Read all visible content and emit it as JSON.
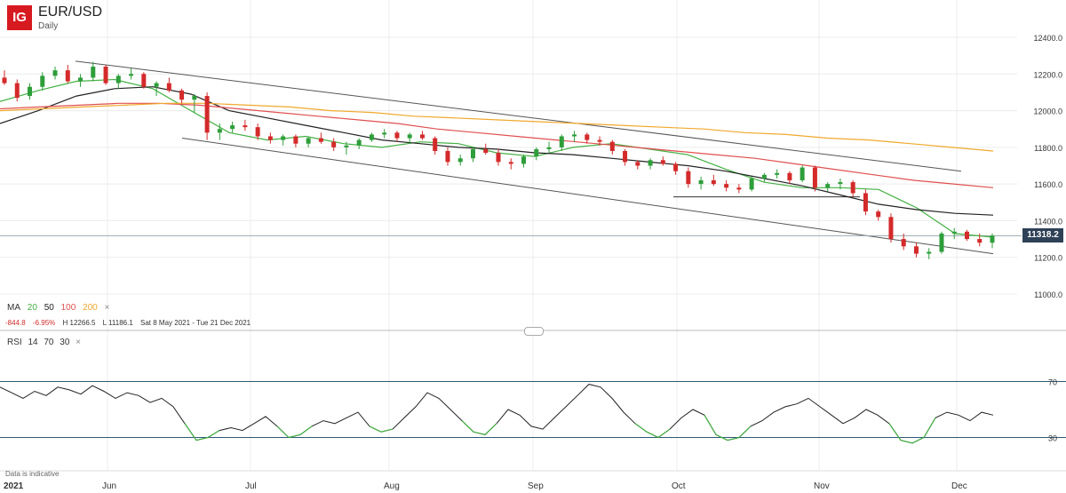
{
  "header": {
    "logo": "IG",
    "title": "EUR/USD",
    "subtitle": "Daily"
  },
  "ma_legend": {
    "label": "MA",
    "p20": "20",
    "p50": "50",
    "p100": "100",
    "p200": "200",
    "close": "×"
  },
  "stats": {
    "change": "-844.8",
    "change_pct": "-6.95%",
    "high": "H 12266.5",
    "low": "L 11186.1",
    "range": "Sat 8 May 2021 - Tue 21 Dec 2021"
  },
  "rsi_legend": {
    "label": "RSI",
    "p1": "14",
    "p2": "70",
    "p3": "30",
    "close": "×"
  },
  "footnote": "Data is indicative",
  "colors": {
    "up": "#2e9e3a",
    "down": "#d42a2a",
    "ma20": "#43b143",
    "ma50": "#222222",
    "ma100": "#e05050",
    "ma200": "#f0a82c",
    "rsi": "#222222",
    "rsi_low": "#43b143",
    "rsi_level": "#2f5878",
    "price_tag": "#2f4157"
  },
  "chart_data": [
    {
      "type": "candlestick",
      "title": "EUR/USD",
      "subtitle": "Daily",
      "y_ticks": [
        "12400.0",
        "12200.0",
        "12000.0",
        "11800.0",
        "11600.0",
        "11400.0",
        "11200.0",
        "11000.0"
      ],
      "ylim": [
        11000,
        12400
      ],
      "x_ticks": [
        "2021",
        "Jun",
        "Jul",
        "Aug",
        "Sep",
        "Oct",
        "Nov",
        "Dec"
      ],
      "last_price": "11318.2",
      "high": 12266.5,
      "low": 11186.1,
      "candles": [
        [
          12180,
          12220,
          12140,
          12150
        ],
        [
          12150,
          12170,
          12050,
          12070
        ],
        [
          12080,
          12150,
          12060,
          12130
        ],
        [
          12130,
          12210,
          12110,
          12190
        ],
        [
          12190,
          12240,
          12170,
          12220
        ],
        [
          12220,
          12250,
          12150,
          12160
        ],
        [
          12160,
          12200,
          12130,
          12180
        ],
        [
          12180,
          12266.5,
          12160,
          12240
        ],
        [
          12240,
          12250,
          12140,
          12150
        ],
        [
          12150,
          12200,
          12120,
          12190
        ],
        [
          12190,
          12230,
          12170,
          12200
        ],
        [
          12200,
          12210,
          12120,
          12130
        ],
        [
          12130,
          12160,
          12080,
          12150
        ],
        [
          12150,
          12180,
          12100,
          12110
        ],
        [
          12110,
          12120,
          12040,
          12060
        ],
        [
          12060,
          12090,
          11990,
          12080
        ],
        [
          12080,
          12100,
          11840,
          11880
        ],
        [
          11880,
          11930,
          11840,
          11900
        ],
        [
          11900,
          11940,
          11880,
          11920
        ],
        [
          11920,
          11950,
          11890,
          11910
        ],
        [
          11910,
          11930,
          11840,
          11860
        ],
        [
          11860,
          11880,
          11820,
          11840
        ],
        [
          11840,
          11870,
          11810,
          11860
        ],
        [
          11860,
          11870,
          11800,
          11820
        ],
        [
          11820,
          11860,
          11800,
          11850
        ],
        [
          11850,
          11880,
          11820,
          11830
        ],
        [
          11830,
          11850,
          11780,
          11800
        ],
        [
          11800,
          11830,
          11760,
          11810
        ],
        [
          11810,
          11850,
          11790,
          11840
        ],
        [
          11840,
          11880,
          11830,
          11870
        ],
        [
          11870,
          11900,
          11850,
          11880
        ],
        [
          11880,
          11890,
          11830,
          11850
        ],
        [
          11850,
          11880,
          11820,
          11870
        ],
        [
          11870,
          11890,
          11840,
          11850
        ],
        [
          11850,
          11860,
          11760,
          11780
        ],
        [
          11780,
          11800,
          11700,
          11720
        ],
        [
          11720,
          11760,
          11700,
          11740
        ],
        [
          11740,
          11800,
          11720,
          11790
        ],
        [
          11790,
          11820,
          11760,
          11770
        ],
        [
          11770,
          11790,
          11700,
          11720
        ],
        [
          11720,
          11740,
          11680,
          11710
        ],
        [
          11710,
          11760,
          11690,
          11750
        ],
        [
          11750,
          11800,
          11730,
          11790
        ],
        [
          11790,
          11830,
          11770,
          11800
        ],
        [
          11800,
          11870,
          11780,
          11860
        ],
        [
          11860,
          11890,
          11830,
          11870
        ],
        [
          11870,
          11880,
          11820,
          11840
        ],
        [
          11840,
          11860,
          11810,
          11830
        ],
        [
          11830,
          11840,
          11760,
          11780
        ],
        [
          11780,
          11790,
          11700,
          11720
        ],
        [
          11720,
          11730,
          11680,
          11700
        ],
        [
          11700,
          11740,
          11680,
          11730
        ],
        [
          11730,
          11750,
          11700,
          11710
        ],
        [
          11710,
          11720,
          11650,
          11670
        ],
        [
          11670,
          11690,
          11580,
          11600
        ],
        [
          11600,
          11640,
          11570,
          11620
        ],
        [
          11620,
          11650,
          11590,
          11600
        ],
        [
          11600,
          11620,
          11560,
          11580
        ],
        [
          11580,
          11600,
          11550,
          11570
        ],
        [
          11570,
          11640,
          11560,
          11630
        ],
        [
          11630,
          11660,
          11610,
          11650
        ],
        [
          11650,
          11680,
          11630,
          11660
        ],
        [
          11660,
          11670,
          11600,
          11620
        ],
        [
          11620,
          11700,
          11610,
          11690
        ],
        [
          11690,
          11700,
          11560,
          11580
        ],
        [
          11580,
          11610,
          11560,
          11600
        ],
        [
          11600,
          11630,
          11570,
          11610
        ],
        [
          11610,
          11620,
          11530,
          11550
        ],
        [
          11550,
          11570,
          11430,
          11450
        ],
        [
          11450,
          11460,
          11400,
          11420
        ],
        [
          11420,
          11440,
          11280,
          11300
        ],
        [
          11300,
          11330,
          11240,
          11260
        ],
        [
          11260,
          11280,
          11200,
          11220
        ],
        [
          11220,
          11250,
          11190,
          11230
        ],
        [
          11230,
          11340,
          11220,
          11330
        ],
        [
          11330,
          11360,
          11300,
          11340
        ],
        [
          11340,
          11350,
          11290,
          11300
        ],
        [
          11300,
          11330,
          11260,
          11280
        ],
        [
          11280,
          11330,
          11250,
          11318
        ]
      ],
      "ma_series": [
        {
          "name": "20",
          "values": [
            12050,
            12110,
            12160,
            12170,
            12120,
            12000,
            11880,
            11840,
            11860,
            11820,
            11800,
            11830,
            11820,
            11770,
            11750,
            11800,
            11820,
            11790,
            11760,
            11680,
            11610,
            11580,
            11580,
            11570,
            11470,
            11330,
            11310
          ]
        },
        {
          "name": "50",
          "values": [
            11930,
            12000,
            12080,
            12120,
            12130,
            12090,
            12000,
            11960,
            11920,
            11880,
            11840,
            11820,
            11800,
            11790,
            11770,
            11760,
            11740,
            11720,
            11700,
            11670,
            11630,
            11590,
            11540,
            11490,
            11460,
            11440,
            11430
          ]
        },
        {
          "name": "100",
          "values": [
            12010,
            12020,
            12030,
            12040,
            12040,
            12030,
            12010,
            11990,
            11970,
            11950,
            11930,
            11900,
            11880,
            11860,
            11840,
            11820,
            11800,
            11780,
            11760,
            11740,
            11710,
            11680,
            11650,
            11620,
            11600,
            11580
          ]
        },
        {
          "name": "200",
          "values": [
            12000,
            12010,
            12020,
            12030,
            12040,
            12040,
            12030,
            12020,
            12000,
            11990,
            11970,
            11960,
            11950,
            11940,
            11930,
            11920,
            11910,
            11900,
            11880,
            11870,
            11850,
            11840,
            11820,
            11800,
            11780
          ]
        }
      ]
    },
    {
      "type": "line",
      "title": "RSI",
      "y_ticks": [
        "70",
        "30"
      ],
      "ylim": [
        10,
        90
      ],
      "levels": [
        70,
        30
      ],
      "values": [
        66,
        62,
        58,
        63,
        60,
        66,
        64,
        61,
        67,
        63,
        58,
        62,
        60,
        55,
        58,
        52,
        40,
        28,
        30,
        35,
        37,
        35,
        40,
        45,
        38,
        30,
        32,
        38,
        42,
        40,
        44,
        48,
        38,
        34,
        36,
        44,
        52,
        62,
        58,
        50,
        42,
        34,
        32,
        40,
        50,
        46,
        38,
        36,
        44,
        52,
        60,
        68,
        66,
        58,
        48,
        40,
        34,
        30,
        36,
        44,
        50,
        46,
        32,
        28,
        30,
        38,
        42,
        48,
        52,
        54,
        58,
        52,
        46,
        40,
        44,
        50,
        46,
        40,
        28,
        26,
        30,
        44,
        48,
        46,
        42,
        48,
        46
      ]
    }
  ]
}
